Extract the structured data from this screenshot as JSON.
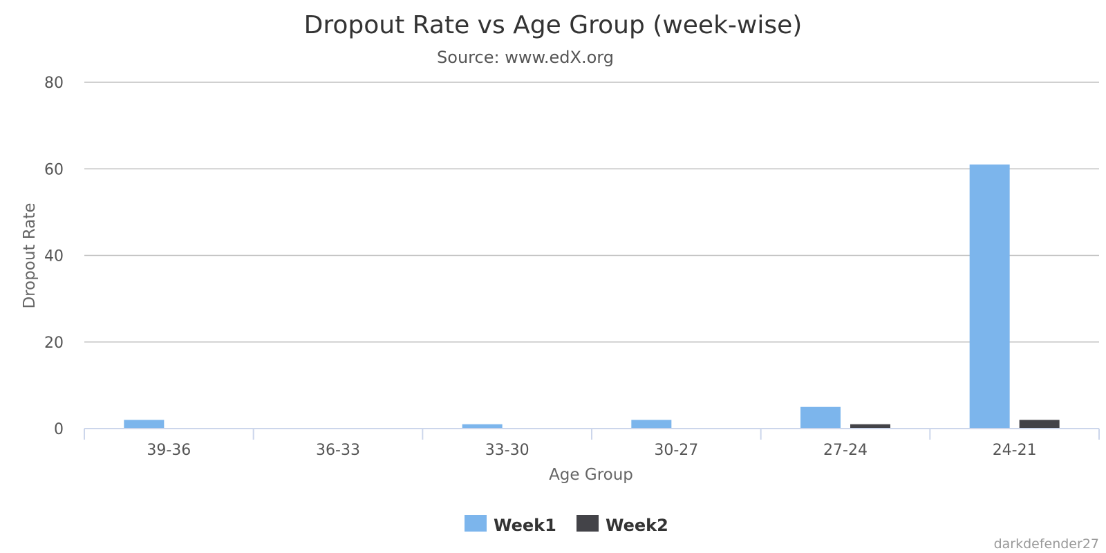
{
  "chart_data": {
    "type": "bar",
    "title": "Dropout Rate vs Age Group (week-wise)",
    "subtitle": "Source: www.edX.org",
    "xlabel": "Age Group",
    "ylabel": "Dropout Rate",
    "categories": [
      "39-36",
      "36-33",
      "33-30",
      "30-27",
      "27-24",
      "24-21"
    ],
    "series": [
      {
        "name": "Week1",
        "color": "#7cb5ec",
        "values": [
          2,
          0,
          1,
          2,
          5,
          61
        ]
      },
      {
        "name": "Week2",
        "color": "#434348",
        "values": [
          0,
          0,
          0,
          0,
          1,
          2
        ]
      }
    ],
    "ylim": [
      0,
      80
    ],
    "yticks": [
      0,
      20,
      40,
      60,
      80
    ],
    "grid": true,
    "legend_position": "bottom-center",
    "credit": "darkdefender27"
  }
}
